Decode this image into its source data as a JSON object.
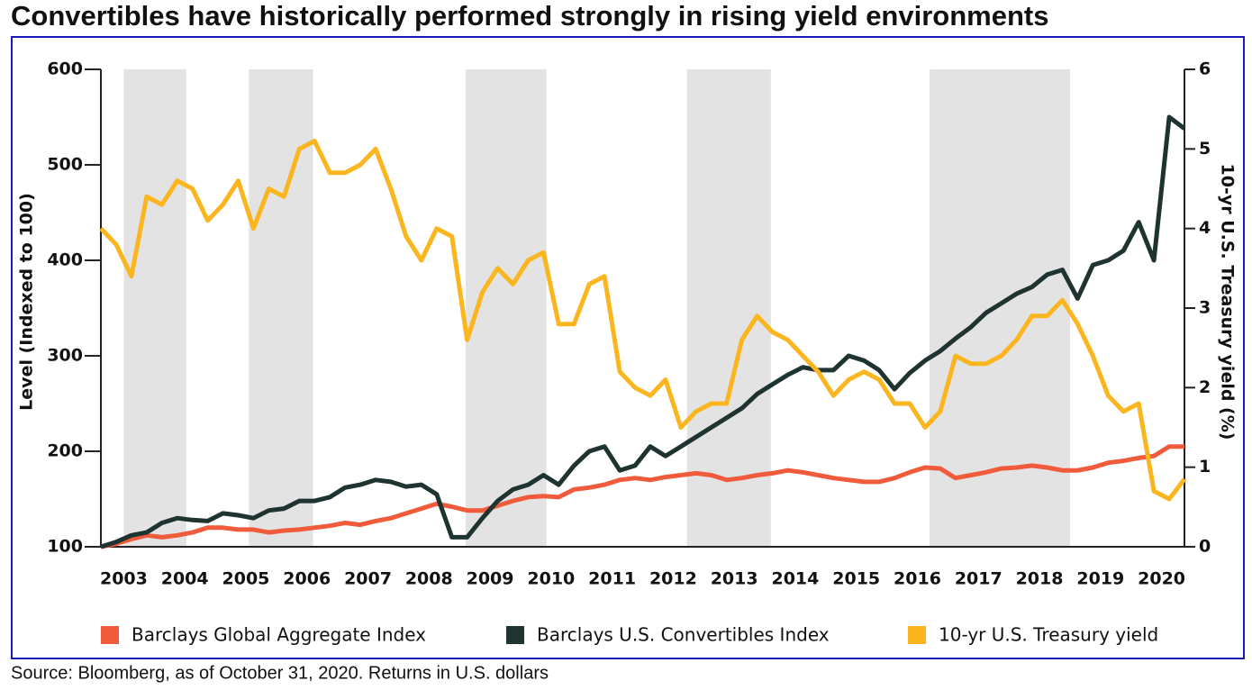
{
  "chart_data": {
    "type": "line",
    "title": "Convertibles have historically performed strongly in rising yield environments",
    "source": "Source: Bloomberg, as of October 31, 2020. Returns in U.S. dollars",
    "y_label": "Level (Indexed to 100)",
    "y2_label": "10-yr U.S. Treasury yield (%)",
    "categories": [
      null,
      "2003",
      null,
      null,
      null,
      "2004",
      null,
      null,
      null,
      "2005",
      null,
      null,
      null,
      "2006",
      null,
      null,
      null,
      "2007",
      null,
      null,
      null,
      "2008",
      null,
      null,
      null,
      "2009",
      null,
      null,
      null,
      "2010",
      null,
      null,
      null,
      "2011",
      null,
      null,
      null,
      "2012",
      null,
      null,
      null,
      "2013",
      null,
      null,
      null,
      "2014",
      null,
      null,
      null,
      "2015",
      null,
      null,
      null,
      "2016",
      null,
      null,
      null,
      "2017",
      null,
      null,
      null,
      "2018",
      null,
      null,
      null,
      "2019",
      null,
      null,
      null,
      "2020",
      null,
      null
    ],
    "ylim": [
      100,
      600
    ],
    "yticks": [
      100,
      200,
      300,
      400,
      500,
      600
    ],
    "y2lim": [
      0,
      6
    ],
    "y2ticks": [
      0,
      1,
      2,
      3,
      4,
      5,
      6
    ],
    "shaded_periods": [
      [
        1.5,
        5.6
      ],
      [
        9.7,
        13.9
      ],
      [
        23.9,
        29.2
      ],
      [
        38.4,
        43.9
      ],
      [
        54.3,
        63.5
      ]
    ],
    "series": [
      {
        "name": "Barclays Global Aggregate Index",
        "color": "#ef5b3b",
        "values": [
          100,
          103,
          108,
          112,
          110,
          112,
          115,
          120,
          120,
          118,
          118,
          115,
          117,
          118,
          120,
          122,
          125,
          123,
          127,
          130,
          135,
          140,
          145,
          142,
          138,
          138,
          143,
          148,
          152,
          153,
          152,
          160,
          162,
          165,
          170,
          172,
          170,
          173,
          175,
          177,
          175,
          170,
          172,
          175,
          177,
          180,
          178,
          175,
          172,
          170,
          168,
          168,
          172,
          178,
          183,
          182,
          172,
          175,
          178,
          182,
          183,
          185,
          183,
          180,
          180,
          183,
          188,
          190,
          193,
          195,
          205,
          205
        ]
      },
      {
        "name": "Barclays U.S. Convertibles Index",
        "color": "#1f3331",
        "values": [
          100,
          105,
          112,
          115,
          125,
          130,
          128,
          127,
          135,
          133,
          130,
          138,
          140,
          148,
          148,
          152,
          162,
          165,
          170,
          168,
          163,
          165,
          155,
          110,
          110,
          130,
          148,
          160,
          165,
          175,
          165,
          185,
          200,
          205,
          180,
          185,
          205,
          195,
          205,
          215,
          225,
          235,
          245,
          260,
          270,
          280,
          288,
          285,
          285,
          300,
          295,
          285,
          265,
          282,
          295,
          305,
          318,
          330,
          345,
          355,
          365,
          372,
          385,
          390,
          360,
          395,
          400,
          410,
          440,
          400,
          550,
          538
        ]
      },
      {
        "name": "10-yr U.S. Treasury yield",
        "color": "#fbb51f",
        "axis": "y2",
        "values": [
          4.0,
          3.8,
          3.4,
          4.4,
          4.3,
          4.6,
          4.5,
          4.1,
          4.3,
          4.6,
          4.0,
          4.5,
          4.4,
          5.0,
          5.1,
          4.7,
          4.7,
          4.8,
          5.0,
          4.5,
          3.9,
          3.6,
          4.0,
          3.9,
          2.6,
          3.2,
          3.5,
          3.3,
          3.6,
          3.7,
          2.8,
          2.8,
          3.3,
          3.4,
          2.2,
          2.0,
          1.9,
          2.1,
          1.5,
          1.7,
          1.8,
          1.8,
          2.6,
          2.9,
          2.7,
          2.6,
          2.4,
          2.2,
          1.9,
          2.1,
          2.2,
          2.1,
          1.8,
          1.8,
          1.5,
          1.7,
          2.4,
          2.3,
          2.3,
          2.4,
          2.6,
          2.9,
          2.9,
          3.1,
          2.8,
          2.4,
          1.9,
          1.7,
          1.8,
          0.7,
          0.6,
          0.85
        ]
      }
    ]
  }
}
